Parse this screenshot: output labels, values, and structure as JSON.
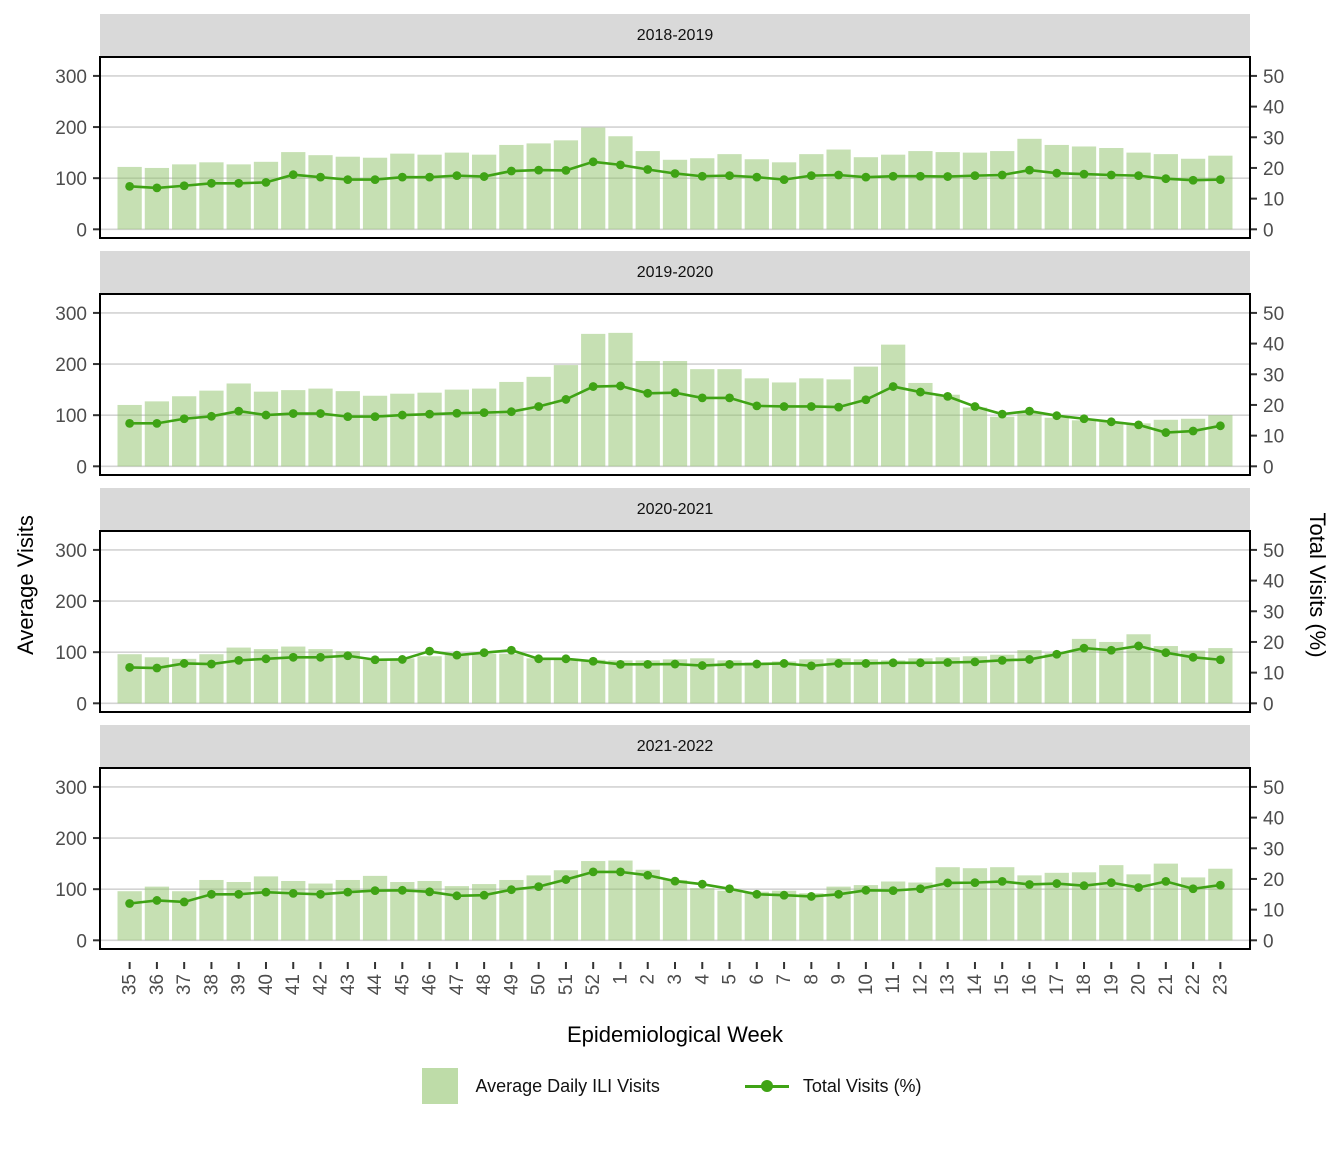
{
  "figure": {
    "left_axis_title": "Average Visits",
    "right_axis_title": "Total Visits (%)",
    "x_axis_title": "Epidemiological Week"
  },
  "legend": {
    "bar_label": "Average Daily ILI Visits",
    "line_label": "Total Visits (%)"
  },
  "colors": {
    "bar_fill": "#92c46e",
    "bar_opacity": 0.52,
    "line": "#3fa315",
    "strip_bg": "#d9d9d9",
    "gridline": "#d3d3d3",
    "tick_mark": "#333333",
    "tick_label": "#4d4d4d",
    "panel_border": "#000000"
  },
  "axes": {
    "left_ticks": [
      0,
      100,
      200,
      300
    ],
    "right_ticks": [
      0,
      10,
      20,
      30,
      40,
      50
    ],
    "left_range": [
      0,
      300
    ],
    "right_range": [
      0,
      50
    ]
  },
  "chart_data": [
    {
      "type": "bar",
      "facet": "2018-2019",
      "categories": [
        "35",
        "36",
        "37",
        "38",
        "39",
        "40",
        "41",
        "42",
        "43",
        "44",
        "45",
        "46",
        "47",
        "48",
        "49",
        "50",
        "51",
        "52",
        "1",
        "2",
        "3",
        "4",
        "5",
        "6",
        "7",
        "8",
        "9",
        "10",
        "11",
        "12",
        "13",
        "14",
        "15",
        "16",
        "17",
        "18",
        "19",
        "20",
        "21",
        "22",
        "23"
      ],
      "series": [
        {
          "name": "Average Daily ILI Visits",
          "type": "bar",
          "axis": "left",
          "values": [
            122,
            120,
            127,
            131,
            127,
            132,
            151,
            145,
            142,
            140,
            148,
            146,
            150,
            146,
            165,
            168,
            174,
            199,
            182,
            153,
            136,
            139,
            147,
            137,
            131,
            147,
            156,
            141,
            146,
            153,
            151,
            150,
            153,
            177,
            165,
            162,
            159,
            150,
            147,
            138,
            144
          ]
        },
        {
          "name": "Total Visits (%)",
          "type": "line",
          "axis": "right",
          "values": [
            14,
            13.5,
            14.2,
            15,
            15,
            15.3,
            17.8,
            17,
            16.2,
            16.2,
            17,
            17,
            17.5,
            17.2,
            19,
            19.3,
            19.2,
            22,
            21,
            19.5,
            18.2,
            17.3,
            17.5,
            17,
            16.2,
            17.5,
            17.7,
            17,
            17.3,
            17.3,
            17.2,
            17.5,
            17.7,
            19.3,
            18.3,
            18,
            17.7,
            17.5,
            16.5,
            16,
            16.2
          ]
        }
      ],
      "xlabel": "Epidemiological Week",
      "ylabel_left": "Average Visits",
      "ylabel_right": "Total Visits (%)",
      "ylim_left": [
        0,
        300
      ],
      "ylim_right": [
        0,
        50
      ]
    },
    {
      "type": "bar",
      "facet": "2019-2020",
      "categories": [
        "35",
        "36",
        "37",
        "38",
        "39",
        "40",
        "41",
        "42",
        "43",
        "44",
        "45",
        "46",
        "47",
        "48",
        "49",
        "50",
        "51",
        "52",
        "1",
        "2",
        "3",
        "4",
        "5",
        "6",
        "7",
        "8",
        "9",
        "10",
        "11",
        "12",
        "13",
        "14",
        "15",
        "16",
        "17",
        "18",
        "19",
        "20",
        "21",
        "22",
        "23"
      ],
      "series": [
        {
          "name": "Average Daily ILI Visits",
          "type": "bar",
          "axis": "left",
          "values": [
            120,
            127,
            137,
            148,
            162,
            146,
            149,
            152,
            147,
            138,
            142,
            144,
            150,
            152,
            165,
            175,
            198,
            259,
            261,
            206,
            206,
            190,
            190,
            172,
            164,
            172,
            170,
            195,
            238,
            163,
            140,
            115,
            97,
            106,
            95,
            90,
            87,
            84,
            91,
            93,
            100
          ]
        },
        {
          "name": "Total Visits (%)",
          "type": "line",
          "axis": "right",
          "values": [
            14,
            14,
            15.5,
            16.3,
            18,
            16.7,
            17.2,
            17.2,
            16.2,
            16.2,
            16.7,
            17,
            17.3,
            17.5,
            17.8,
            19.5,
            21.8,
            26,
            26.2,
            23.8,
            24,
            22.3,
            22.3,
            19.7,
            19.5,
            19.5,
            19.3,
            21.7,
            26,
            24.2,
            22.8,
            19.5,
            17,
            18,
            16.5,
            15.5,
            14.5,
            13.5,
            11,
            11.5,
            13.2
          ]
        }
      ],
      "xlabel": "Epidemiological Week",
      "ylabel_left": "Average Visits",
      "ylabel_right": "Total Visits (%)",
      "ylim_left": [
        0,
        300
      ],
      "ylim_right": [
        0,
        50
      ]
    },
    {
      "type": "bar",
      "facet": "2020-2021",
      "categories": [
        "35",
        "36",
        "37",
        "38",
        "39",
        "40",
        "41",
        "42",
        "43",
        "44",
        "45",
        "46",
        "47",
        "48",
        "49",
        "50",
        "51",
        "52",
        "1",
        "2",
        "3",
        "4",
        "5",
        "6",
        "7",
        "8",
        "9",
        "10",
        "11",
        "12",
        "13",
        "14",
        "15",
        "16",
        "17",
        "18",
        "19",
        "20",
        "21",
        "22",
        "23"
      ],
      "series": [
        {
          "name": "Average Daily ILI Visits",
          "type": "bar",
          "axis": "left",
          "values": [
            96,
            90,
            87,
            96,
            109,
            106,
            111,
            106,
            102,
            85,
            88,
            92,
            95,
            97,
            97,
            88,
            87,
            85,
            84,
            84,
            86,
            88,
            84,
            80,
            82,
            86,
            88,
            86,
            84,
            88,
            90,
            92,
            95,
            104,
            98,
            126,
            120,
            135,
            112,
            103,
            108
          ]
        },
        {
          "name": "Total Visits (%)",
          "type": "line",
          "axis": "right",
          "values": [
            11.7,
            11.5,
            13,
            12.8,
            14,
            14.5,
            15,
            15,
            15.5,
            14.2,
            14.3,
            17,
            15.7,
            16.5,
            17.3,
            14.5,
            14.5,
            13.7,
            12.7,
            12.7,
            12.8,
            12.3,
            12.7,
            12.8,
            13,
            12.2,
            13,
            13,
            13.2,
            13.2,
            13.3,
            13.5,
            14,
            14.3,
            16,
            18,
            17.3,
            18.7,
            16.5,
            15,
            14.2
          ]
        }
      ],
      "xlabel": "Epidemiological Week",
      "ylabel_left": "Average Visits",
      "ylabel_right": "Total Visits (%)",
      "ylim_left": [
        0,
        300
      ],
      "ylim_right": [
        0,
        50
      ]
    },
    {
      "type": "bar",
      "facet": "2021-2022",
      "categories": [
        "35",
        "36",
        "37",
        "38",
        "39",
        "40",
        "41",
        "42",
        "43",
        "44",
        "45",
        "46",
        "47",
        "48",
        "49",
        "50",
        "51",
        "52",
        "1",
        "2",
        "3",
        "4",
        "5",
        "6",
        "7",
        "8",
        "9",
        "10",
        "11",
        "12",
        "13",
        "14",
        "15",
        "16",
        "17",
        "18",
        "19",
        "20",
        "21",
        "22",
        "23"
      ],
      "series": [
        {
          "name": "Average Daily ILI Visits",
          "type": "bar",
          "axis": "left",
          "values": [
            96,
            105,
            96,
            118,
            114,
            125,
            116,
            111,
            118,
            126,
            114,
            116,
            106,
            110,
            118,
            127,
            137,
            155,
            156,
            138,
            118,
            102,
            97,
            95,
            97,
            92,
            105,
            108,
            115,
            113,
            143,
            141,
            143,
            127,
            132,
            133,
            147,
            129,
            150,
            123,
            140
          ]
        },
        {
          "name": "Total Visits (%)",
          "type": "line",
          "axis": "right",
          "values": [
            12,
            13,
            12.5,
            15,
            15,
            15.7,
            15.3,
            15,
            15.7,
            16.2,
            16.3,
            15.8,
            14.5,
            14.7,
            16.5,
            17.5,
            19.8,
            22.3,
            22.3,
            21.2,
            19.3,
            18.3,
            16.8,
            15,
            14.7,
            14.3,
            15,
            16.3,
            16.2,
            16.8,
            18.7,
            18.8,
            19.2,
            18.2,
            18.5,
            17.8,
            18.8,
            17.2,
            19.2,
            16.8,
            18
          ]
        }
      ],
      "xlabel": "Epidemiological Week",
      "ylabel_left": "Average Visits",
      "ylabel_right": "Total Visits (%)",
      "ylim_left": [
        0,
        300
      ],
      "ylim_right": [
        0,
        50
      ]
    }
  ]
}
